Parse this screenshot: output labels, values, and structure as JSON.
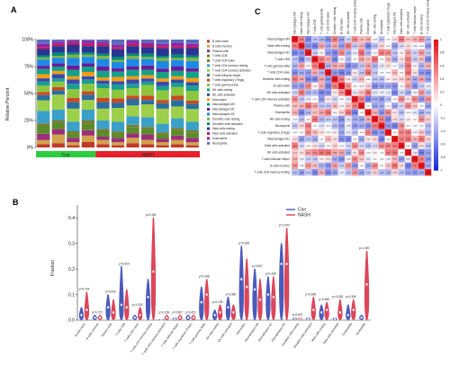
{
  "figure_labels": {
    "a": "A",
    "b": "B",
    "c": "C"
  },
  "chart_data": [
    {
      "type": "bar",
      "panel": "A",
      "stacked": true,
      "ylabel": "Relative Percent",
      "yticks": [
        "0%",
        "25%",
        "50%",
        "75%",
        "100%"
      ],
      "ylim": [
        0,
        100
      ],
      "samples": 11,
      "groups": [
        {
          "name": "Con",
          "count": 4,
          "color": "#2ecc40"
        },
        {
          "name": "NASH",
          "count": 7,
          "color": "#e8202a"
        }
      ],
      "series": [
        {
          "name": "B cells naive",
          "color": "#c0392b",
          "values": [
            3,
            4,
            2,
            5,
            3,
            2,
            4,
            3,
            2,
            3,
            2
          ]
        },
        {
          "name": "B cells memory",
          "color": "#d1a34b",
          "values": [
            4,
            8,
            3,
            6,
            4,
            3,
            5,
            4,
            3,
            4,
            3
          ]
        },
        {
          "name": "Plasma cells",
          "color": "#9c2f7a",
          "values": [
            6,
            5,
            4,
            5,
            3,
            4,
            4,
            5,
            3,
            4,
            4
          ]
        },
        {
          "name": "T cells CD8",
          "color": "#5b8c2a",
          "values": [
            8,
            6,
            4,
            6,
            5,
            4,
            6,
            5,
            4,
            5,
            5
          ]
        },
        {
          "name": "T cells CD4 naive",
          "color": "#7b7b2b",
          "values": [
            2,
            2,
            2,
            3,
            2,
            2,
            2,
            2,
            2,
            2,
            2
          ]
        },
        {
          "name": "T cells CD4 memory resting",
          "color": "#3aa0c8",
          "values": [
            12,
            10,
            9,
            10,
            8,
            9,
            8,
            9,
            8,
            9,
            8
          ]
        },
        {
          "name": "T cells CD4 memory activated",
          "color": "#9ccf4a",
          "values": [
            10,
            14,
            12,
            9,
            11,
            13,
            10,
            12,
            14,
            11,
            12
          ]
        },
        {
          "name": "T cells follicular helper",
          "color": "#2c6e9e",
          "values": [
            5,
            4,
            6,
            5,
            6,
            5,
            6,
            4,
            5,
            6,
            5
          ]
        },
        {
          "name": "T cells regulatory (Tregs)",
          "color": "#c94a1f",
          "values": [
            3,
            3,
            4,
            3,
            4,
            4,
            3,
            4,
            3,
            4,
            3
          ]
        },
        {
          "name": "T cells gamma delta",
          "color": "#8cc63f",
          "values": [
            6,
            5,
            8,
            7,
            9,
            8,
            7,
            10,
            9,
            8,
            9
          ]
        },
        {
          "name": "NK cells resting",
          "color": "#1a9e8f",
          "values": [
            4,
            3,
            5,
            4,
            4,
            5,
            4,
            3,
            4,
            4,
            5
          ]
        },
        {
          "name": "NK cells activated",
          "color": "#3949ab",
          "values": [
            3,
            4,
            4,
            3,
            3,
            3,
            4,
            3,
            4,
            3,
            3
          ]
        },
        {
          "name": "Monocytes",
          "color": "#f39c12",
          "values": [
            4,
            3,
            3,
            4,
            3,
            4,
            3,
            3,
            3,
            3,
            4
          ]
        },
        {
          "name": "Macrophages M0",
          "color": "#16a085",
          "values": [
            5,
            4,
            6,
            5,
            6,
            5,
            6,
            5,
            6,
            5,
            6
          ]
        },
        {
          "name": "Macrophages M1",
          "color": "#6a1b9a",
          "values": [
            3,
            3,
            4,
            3,
            4,
            3,
            3,
            4,
            3,
            4,
            3
          ]
        },
        {
          "name": "Macrophages M2",
          "color": "#1e88e5",
          "values": [
            6,
            5,
            7,
            6,
            7,
            6,
            7,
            6,
            7,
            6,
            7
          ]
        },
        {
          "name": "Dendritic cells resting",
          "color": "#7cb342",
          "values": [
            2,
            2,
            3,
            2,
            3,
            2,
            3,
            2,
            3,
            2,
            3
          ]
        },
        {
          "name": "Dendritic cells activated",
          "color": "#00897b",
          "values": [
            2,
            3,
            2,
            2,
            2,
            3,
            2,
            3,
            2,
            3,
            2
          ]
        },
        {
          "name": "Mast cells resting",
          "color": "#283593",
          "values": [
            6,
            6,
            7,
            6,
            7,
            7,
            7,
            6,
            7,
            6,
            7
          ]
        },
        {
          "name": "Mast cells activated",
          "color": "#c2185b",
          "values": [
            2,
            2,
            2,
            2,
            2,
            2,
            2,
            2,
            2,
            2,
            2
          ]
        },
        {
          "name": "Eosinophils",
          "color": "#8e24aa",
          "values": [
            3,
            2,
            2,
            3,
            2,
            2,
            3,
            2,
            2,
            3,
            2
          ]
        },
        {
          "name": "Neutrophils",
          "color": "#5c6bc0",
          "values": [
            4,
            2,
            1,
            1,
            2,
            5,
            1,
            3,
            4,
            3,
            4
          ]
        }
      ]
    },
    {
      "type": "violin",
      "panel": "B",
      "ylabel": "Fraction",
      "ylim": [
        0,
        0.45
      ],
      "yticks": [
        "0.0",
        "0.1",
        "0.2",
        "0.3",
        "0.4"
      ],
      "legend": [
        {
          "name": "Con",
          "color": "#2b3db0"
        },
        {
          "name": "NASH",
          "color": "#d7263d"
        }
      ],
      "categories": [
        "B cells naive",
        "B cells memory",
        "Plasma cells",
        "T cells CD8",
        "T cells CD4 naive",
        "T cells CD4 memory resting",
        "T cells CD4 memory activated",
        "T cells follicular helper",
        "T cells regulatory (Tregs)",
        "T cells gamma delta",
        "NK cells resting",
        "NK cells activated",
        "Monocytes",
        "Macrophages M0",
        "Macrophages M1",
        "Macrophages M2",
        "Dendritic cells resting",
        "Dendritic cells activated",
        "Mast cells resting",
        "Mast cells activated",
        "Eosinophils",
        "Neutrophils"
      ],
      "pvalues": [
        "p=0.724",
        "p=0.727",
        "p=0.030",
        "p=0.924",
        "p=1.000",
        "p=0.354",
        "p=0.169",
        "p=0.907",
        "p=0.421",
        "p=0.048",
        "p=0.235",
        "p=0.060",
        "p=0.435",
        "p=0.907",
        "p=0.435",
        "p=1.000",
        "p=0.607",
        "p=0.650",
        "p=0.359",
        "p=0.158",
        "p=0.359",
        "p=1.000"
      ],
      "con_max": [
        0.05,
        0.02,
        0.1,
        0.21,
        0.02,
        0.16,
        0.0,
        0.01,
        0.02,
        0.13,
        0.04,
        0.09,
        0.29,
        0.2,
        0.17,
        0.3,
        0.01,
        0.01,
        0.06,
        0.01,
        0.06,
        0.02
      ],
      "nash_max": [
        0.11,
        0.02,
        0.08,
        0.12,
        0.05,
        0.4,
        0.02,
        0.02,
        0.02,
        0.16,
        0.06,
        0.06,
        0.24,
        0.16,
        0.17,
        0.36,
        0.01,
        0.09,
        0.07,
        0.08,
        0.08,
        0.27
      ],
      "con_median": [
        0.02,
        0.01,
        0.05,
        0.06,
        0.01,
        0.09,
        0.0,
        0.005,
        0.01,
        0.07,
        0.02,
        0.05,
        0.16,
        0.12,
        0.1,
        0.22,
        0.005,
        0.005,
        0.03,
        0.005,
        0.02,
        0.01
      ],
      "nash_median": [
        0.04,
        0.01,
        0.03,
        0.05,
        0.02,
        0.19,
        0.01,
        0.01,
        0.01,
        0.1,
        0.03,
        0.03,
        0.13,
        0.08,
        0.09,
        0.22,
        0.005,
        0.04,
        0.04,
        0.03,
        0.04,
        0.14
      ]
    },
    {
      "type": "heatmap",
      "panel": "C",
      "rows": [
        "Macrophages M0",
        "Mast cells resting",
        "Macrophages M2",
        "T cells CD8",
        "T cells gamma delta",
        "T cells CD4 naive",
        "Dendritic cells resting",
        "B cells naive",
        "NK cells activated",
        "T cells CD4 memory activated",
        "Plasma cells",
        "Eosinophils",
        "NK cells resting",
        "Neutrophils",
        "T cells regulatory (Tregs)",
        "Macrophages M1",
        "Mast cells activated",
        "NK cells activated",
        "T cells follicular helper",
        "B cells memory",
        "T cells CD4 memory resting"
      ],
      "colorscale": {
        "low": "#1a2bd6",
        "mid": "#ffffff",
        "high": "#e3141b",
        "range": [
          -1,
          1
        ]
      },
      "colorbar_ticks": [
        "1",
        "0.8",
        "0.6",
        "0.4",
        "0.2",
        "0",
        "-0.2",
        "-0.4",
        "-0.6",
        "-0.8",
        "-1"
      ]
    }
  ]
}
